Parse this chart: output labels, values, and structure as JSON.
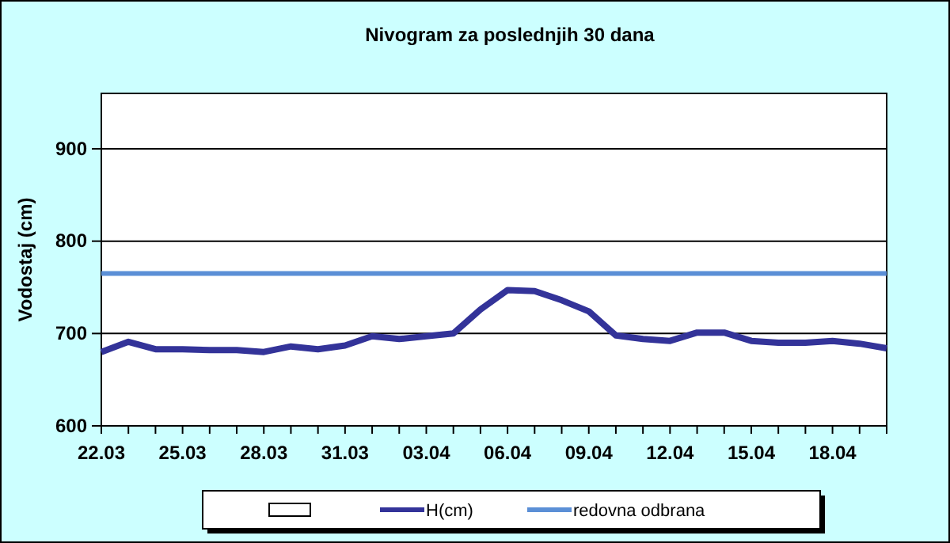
{
  "chart_data": {
    "type": "line",
    "title": "Nivogram za poslednjih 30 dana",
    "ylabel": "Vodostaj (cm)",
    "categories": [
      "22.03",
      null,
      null,
      "25.03",
      null,
      null,
      "28.03",
      null,
      null,
      "31.03",
      null,
      null,
      "03.04",
      null,
      null,
      "06.04",
      null,
      null,
      "09.04",
      null,
      null,
      "12.04",
      null,
      null,
      "15.04",
      null,
      null,
      "18.04",
      null,
      null
    ],
    "series": [
      {
        "name": "H(cm)",
        "color": "#333399",
        "values": [
          680,
          691,
          683,
          683,
          682,
          682,
          680,
          686,
          683,
          687,
          697,
          694,
          697,
          700,
          726,
          747,
          746,
          736,
          724,
          698,
          694,
          692,
          701,
          701,
          692,
          690,
          690,
          692,
          689,
          684
        ]
      }
    ],
    "ylim": [
      600,
      960
    ],
    "yticks": [
      600,
      700,
      800,
      900
    ],
    "grid": "y",
    "legend": "bottom",
    "marker": "none",
    "line_style": "solid",
    "ref_lines": [
      {
        "axis": "y",
        "value": 765,
        "label": "redovna odbrana",
        "color": "#5b8fd6"
      }
    ]
  }
}
